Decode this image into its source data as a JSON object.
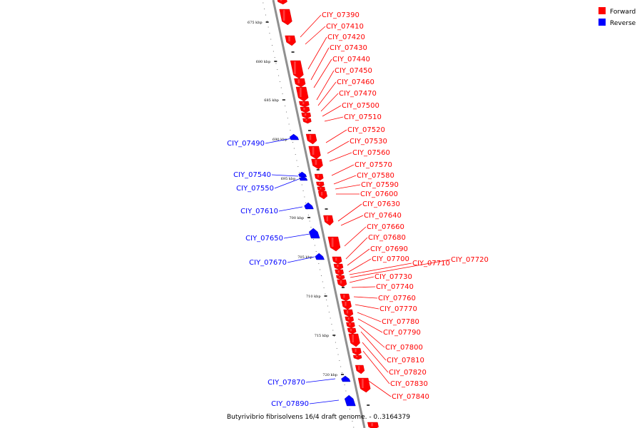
{
  "caption": "Butyrivibrio fibrisolvens 16/4 draft genome. - 0..3164379",
  "colors": {
    "forward": "#ff0000",
    "reverse": "#0000ff",
    "backbone": "#909090"
  },
  "legend": [
    {
      "label": "Forward",
      "strand": "forward"
    },
    {
      "label": "Reverse",
      "strand": "reverse"
    }
  ],
  "ticks": [
    "675 kbp",
    "680 kbp",
    "685 kbp",
    "690 kbp",
    "695 kbp",
    "700 kbp",
    "705 kbp",
    "710 kbp",
    "715 kbp",
    "720 kbp"
  ],
  "forward_genes": [
    "CIY_07390",
    "CIY_07410",
    "CIY_07420",
    "CIY_07430",
    "CIY_07440",
    "CIY_07450",
    "CIY_07460",
    "CIY_07470",
    "CIY_07500",
    "CIY_07510",
    "CIY_07520",
    "CIY_07530",
    "CIY_07560",
    "CIY_07570",
    "CIY_07580",
    "CIY_07590",
    "CIY_07600",
    "CIY_07630",
    "CIY_07640",
    "CIY_07660",
    "CIY_07680",
    "CIY_07690",
    "CIY_07700",
    "CIY_07710",
    "CIY_07720",
    "CIY_07730",
    "CIY_07740",
    "CIY_07760",
    "CIY_07770",
    "CIY_07780",
    "CIY_07790",
    "CIY_07800",
    "CIY_07810",
    "CIY_07820",
    "CIY_07830",
    "CIY_07840"
  ],
  "reverse_genes": [
    "CIY_07490",
    "CIY_07540",
    "CIY_07550",
    "CIY_07610",
    "CIY_07650",
    "CIY_07670",
    "CIY_07870",
    "CIY_07890"
  ]
}
